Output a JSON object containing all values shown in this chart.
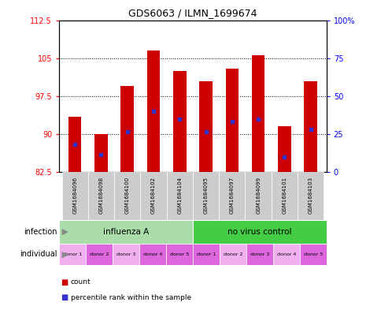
{
  "title": "GDS6063 / ILMN_1699674",
  "samples": [
    "GSM1684096",
    "GSM1684098",
    "GSM1684100",
    "GSM1684102",
    "GSM1684104",
    "GSM1684095",
    "GSM1684097",
    "GSM1684099",
    "GSM1684101",
    "GSM1684103"
  ],
  "bar_bottom": 82.5,
  "count_values": [
    93.5,
    90.0,
    99.5,
    106.5,
    102.5,
    100.5,
    103.0,
    105.5,
    91.5,
    100.5
  ],
  "percentile_values": [
    88.0,
    86.0,
    90.5,
    94.5,
    93.0,
    90.5,
    92.5,
    93.0,
    85.5,
    91.0
  ],
  "ylim_left": [
    82.5,
    112.5
  ],
  "ylim_right": [
    0,
    100
  ],
  "yticks_left": [
    82.5,
    90.0,
    97.5,
    105.0,
    112.5
  ],
  "ytick_labels_left": [
    "82.5",
    "90",
    "97.5",
    "105",
    "112.5"
  ],
  "yticks_right": [
    0,
    25,
    50,
    75,
    100
  ],
  "ytick_labels_right": [
    "0",
    "25",
    "50",
    "75",
    "100%"
  ],
  "bar_color": "#CC0000",
  "blue_color": "#3333CC",
  "infection_groups": [
    {
      "label": "influenza A",
      "start": 0,
      "end": 5,
      "color": "#AADDAA"
    },
    {
      "label": "no virus control",
      "start": 5,
      "end": 10,
      "color": "#44CC44"
    }
  ],
  "individual_labels": [
    "donor 1",
    "donor 2",
    "donor 3",
    "donor 4",
    "donor 5",
    "donor 1",
    "donor 2",
    "donor 3",
    "donor 4",
    "donor 5"
  ],
  "individual_color_light": "#F0B0F0",
  "individual_color_dark": "#DD66DD",
  "sample_bg_color": "#CCCCCC",
  "infection_label": "infection",
  "individual_label": "individual",
  "arrow_color": "#888888"
}
